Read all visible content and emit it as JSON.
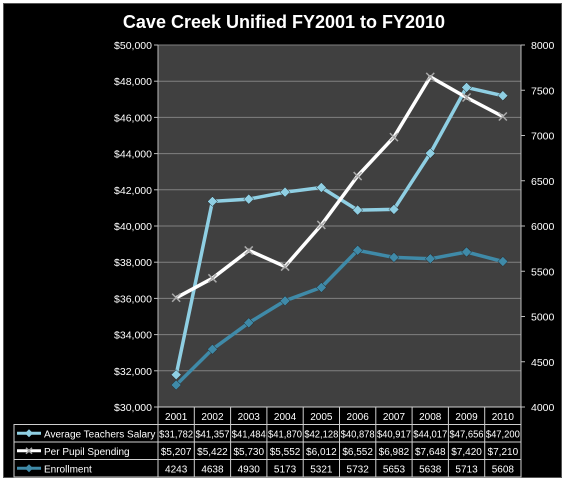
{
  "chart_data": {
    "type": "line",
    "title": "Cave Creek Unified FY2001 to FY2010",
    "categories": [
      "2001",
      "2002",
      "2003",
      "2004",
      "2005",
      "2006",
      "2007",
      "2008",
      "2009",
      "2010"
    ],
    "y_left": {
      "ylim": [
        30000,
        50000
      ],
      "tick_values": [
        30000,
        32000,
        34000,
        36000,
        38000,
        40000,
        42000,
        44000,
        46000,
        48000,
        50000
      ],
      "tick_labels": [
        "$30,000",
        "$32,000",
        "$34,000",
        "$36,000",
        "$38,000",
        "$40,000",
        "$42,000",
        "$44,000",
        "$46,000",
        "$48,000",
        "$50,000"
      ]
    },
    "y_right": {
      "ylim": [
        4000,
        8000
      ],
      "tick_values": [
        4000,
        4500,
        5000,
        5500,
        6000,
        6500,
        7000,
        7500,
        8000
      ],
      "tick_labels": [
        "4000",
        "4500",
        "5000",
        "5500",
        "6000",
        "6500",
        "7000",
        "7500",
        "8000"
      ]
    },
    "grid": true,
    "legend": "data table below plot",
    "series": [
      {
        "name": "Average Teachers Salary",
        "axis": "left",
        "marker": "diamond",
        "color": "#8fcfe3",
        "values": [
          31782,
          41357,
          41484,
          41870,
          42128,
          40878,
          40917,
          44017,
          47656,
          47200
        ],
        "value_labels": [
          "$31,782",
          "$41,357",
          "$41,484",
          "$41,870",
          "$42,128",
          "$40,878",
          "$40,917",
          "$44,017",
          "$47,656",
          "$47,200"
        ]
      },
      {
        "name": "Per Pupil Spending",
        "axis": "right",
        "marker": "x",
        "color": "#ffffff",
        "values": [
          5207,
          5422,
          5730,
          5552,
          6012,
          6552,
          6982,
          7648,
          7420,
          7210
        ],
        "value_labels": [
          "$5,207",
          "$5,422",
          "$5,730",
          "$5,552",
          "$6,012",
          "$6,552",
          "$6,982",
          "$7,648",
          "$7,420",
          "$7,210"
        ]
      },
      {
        "name": "Enrollment",
        "axis": "right",
        "marker": "diamond",
        "color": "#3f8aa8",
        "values": [
          4243,
          4638,
          4930,
          5173,
          5321,
          5732,
          5653,
          5638,
          5713,
          5608
        ],
        "value_labels": [
          "4243",
          "4638",
          "4930",
          "5173",
          "5321",
          "5732",
          "5653",
          "5638",
          "5713",
          "5608"
        ]
      }
    ],
    "colors": {
      "background": "#000000",
      "plot_area": "#404040",
      "gridline": "#808080",
      "text": "#ffffff"
    }
  }
}
